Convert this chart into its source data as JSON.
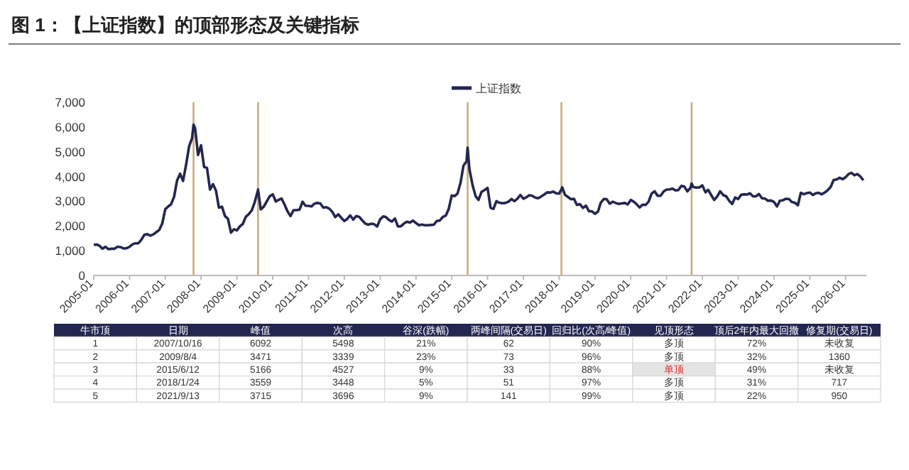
{
  "chart_data": {
    "type": "line",
    "title": "图 1：【上证指数】的顶部形态及关键指标",
    "legend": "top",
    "x": [
      "2005-01",
      "2005-02",
      "2005-03",
      "2005-04",
      "2005-05",
      "2005-06",
      "2005-07",
      "2005-08",
      "2005-09",
      "2005-10",
      "2005-11",
      "2005-12",
      "2006-01",
      "2006-02",
      "2006-03",
      "2006-04",
      "2006-05",
      "2006-06",
      "2006-07",
      "2006-08",
      "2006-09",
      "2006-10",
      "2006-11",
      "2006-12",
      "2007-01",
      "2007-02",
      "2007-03",
      "2007-04",
      "2007-05",
      "2007-06",
      "2007-07",
      "2007-08",
      "2007-09",
      "2007-10",
      "2007-10-16",
      "2007-11",
      "2007-12",
      "2008-01",
      "2008-02",
      "2008-03",
      "2008-04",
      "2008-05",
      "2008-06",
      "2008-07",
      "2008-08",
      "2008-09",
      "2008-10",
      "2008-11",
      "2008-12",
      "2009-01",
      "2009-02",
      "2009-03",
      "2009-04",
      "2009-05",
      "2009-06",
      "2009-07",
      "2009-08",
      "2009-08-04",
      "2009-09",
      "2009-10",
      "2009-11",
      "2009-12",
      "2010-01",
      "2010-02",
      "2010-03",
      "2010-04",
      "2010-05",
      "2010-06",
      "2010-07",
      "2010-08",
      "2010-09",
      "2010-10",
      "2010-11",
      "2010-12",
      "2011-01",
      "2011-02",
      "2011-03",
      "2011-04",
      "2011-05",
      "2011-06",
      "2011-07",
      "2011-08",
      "2011-09",
      "2011-10",
      "2011-11",
      "2011-12",
      "2012-01",
      "2012-02",
      "2012-03",
      "2012-04",
      "2012-05",
      "2012-06",
      "2012-07",
      "2012-08",
      "2012-09",
      "2012-10",
      "2012-11",
      "2012-12",
      "2013-01",
      "2013-02",
      "2013-03",
      "2013-04",
      "2013-05",
      "2013-06",
      "2013-07",
      "2013-08",
      "2013-09",
      "2013-10",
      "2013-11",
      "2013-12",
      "2014-01",
      "2014-02",
      "2014-03",
      "2014-04",
      "2014-05",
      "2014-06",
      "2014-07",
      "2014-08",
      "2014-09",
      "2014-10",
      "2014-11",
      "2014-12",
      "2015-01",
      "2015-02",
      "2015-03",
      "2015-04",
      "2015-05",
      "2015-06",
      "2015-06-12",
      "2015-07",
      "2015-08",
      "2015-09",
      "2015-10",
      "2015-11",
      "2015-12",
      "2016-01",
      "2016-02",
      "2016-03",
      "2016-04",
      "2016-05",
      "2016-06",
      "2016-07",
      "2016-08",
      "2016-09",
      "2016-10",
      "2016-11",
      "2016-12",
      "2017-01",
      "2017-02",
      "2017-03",
      "2017-04",
      "2017-05",
      "2017-06",
      "2017-07",
      "2017-08",
      "2017-09",
      "2017-10",
      "2017-11",
      "2017-12",
      "2018-01",
      "2018-01-24",
      "2018-02",
      "2018-03",
      "2018-04",
      "2018-05",
      "2018-06",
      "2018-07",
      "2018-08",
      "2018-09",
      "2018-10",
      "2018-11",
      "2018-12",
      "2019-01",
      "2019-02",
      "2019-03",
      "2019-04",
      "2019-05",
      "2019-06",
      "2019-07",
      "2019-08",
      "2019-09",
      "2019-10",
      "2019-11",
      "2019-12",
      "2020-01",
      "2020-02",
      "2020-03",
      "2020-04",
      "2020-05",
      "2020-06",
      "2020-07",
      "2020-08",
      "2020-09",
      "2020-10",
      "2020-11",
      "2020-12",
      "2021-01",
      "2021-02",
      "2021-03",
      "2021-04",
      "2021-05",
      "2021-06",
      "2021-07",
      "2021-08",
      "2021-09",
      "2021-09-13",
      "2021-10",
      "2021-11",
      "2021-12",
      "2022-01",
      "2022-02",
      "2022-03",
      "2022-04",
      "2022-05",
      "2022-06",
      "2022-07",
      "2022-08",
      "2022-09",
      "2022-10",
      "2022-11",
      "2022-12",
      "2023-01",
      "2023-02",
      "2023-03",
      "2023-04",
      "2023-05",
      "2023-06",
      "2023-07",
      "2023-08",
      "2023-09",
      "2023-10",
      "2023-11",
      "2023-12",
      "2024-01",
      "2024-02",
      "2024-03",
      "2024-04",
      "2024-05",
      "2024-06",
      "2024-07",
      "2024-08",
      "2024-09",
      "2024-10",
      "2024-11",
      "2024-12",
      "2025-01",
      "2025-02",
      "2025-03",
      "2025-04",
      "2025-05",
      "2025-06",
      "2025-07",
      "2025-08",
      "2025-09",
      "2025-10",
      "2025-11",
      "2025-12",
      "2026-01",
      "2026-02",
      "2026-03",
      "2026-04",
      "2026-05",
      "2026-06",
      "2026-07"
    ],
    "series": [
      {
        "name": "上证指数",
        "color": "#23264f",
        "values": [
          1240,
          1250,
          1200,
          1080,
          1160,
          1060,
          1080,
          1080,
          1160,
          1150,
          1090,
          1100,
          1160,
          1260,
          1300,
          1300,
          1440,
          1640,
          1670,
          1610,
          1660,
          1750,
          1840,
          2100,
          2680,
          2790,
          2880,
          3180,
          3840,
          4110,
          3820,
          4470,
          5220,
          5550,
          6092,
          5950,
          4870,
          5260,
          4380,
          4350,
          3470,
          3690,
          3430,
          2740,
          2780,
          2400,
          2290,
          1730,
          1870,
          1820,
          1990,
          2080,
          2370,
          2480,
          2630,
          2960,
          3410,
          3471,
          2670,
          2780,
          2990,
          3200,
          3280,
          2990,
          3050,
          3110,
          2870,
          2590,
          2400,
          2640,
          2640,
          2660,
          2980,
          2820,
          2810,
          2790,
          2900,
          2930,
          2910,
          2740,
          2760,
          2700,
          2570,
          2360,
          2470,
          2330,
          2200,
          2290,
          2430,
          2260,
          2400,
          2370,
          2230,
          2100,
          2050,
          2090,
          2070,
          1980,
          2270,
          2390,
          2360,
          2240,
          2180,
          2300,
          1980,
          1990,
          2100,
          2170,
          2140,
          2220,
          2120,
          2030,
          2060,
          2030,
          2030,
          2040,
          2050,
          2200,
          2220,
          2360,
          2420,
          2680,
          3230,
          3210,
          3310,
          3750,
          4440,
          4610,
          5166,
          4280,
          3660,
          3210,
          3050,
          3380,
          3450,
          3540,
          2740,
          2690,
          3000,
          2940,
          2920,
          2930,
          2980,
          3090,
          3000,
          3100,
          3250,
          3100,
          3160,
          3240,
          3220,
          3150,
          3120,
          3190,
          3270,
          3360,
          3350,
          3390,
          3320,
          3310,
          3480,
          3559,
          3260,
          3170,
          3080,
          3100,
          2850,
          2880,
          2730,
          2820,
          2600,
          2590,
          2490,
          2580,
          2940,
          3090,
          3080,
          2900,
          2980,
          2930,
          2890,
          2910,
          2930,
          2870,
          3050,
          2980,
          2880,
          2750,
          2860,
          2850,
          2980,
          3310,
          3400,
          3220,
          3220,
          3390,
          3470,
          3480,
          3510,
          3440,
          3450,
          3620,
          3590,
          3400,
          3540,
          3715,
          3570,
          3550,
          3560,
          3640,
          3360,
          3460,
          3250,
          3050,
          3190,
          3400,
          3250,
          3200,
          3020,
          2890,
          3150,
          3090,
          3260,
          3280,
          3270,
          3320,
          3200,
          3200,
          3290,
          3120,
          3110,
          3020,
          3030,
          2970,
          2790,
          3020,
          3040,
          3100,
          3090,
          2970,
          2940,
          2840,
          3340,
          3280,
          3330,
          3350,
          3250,
          3320,
          3340,
          3280,
          3350,
          3440,
          3570,
          3860,
          3880,
          3950,
          3890,
          3970,
          4100,
          4150,
          4050,
          4100,
          4000,
          3850
        ]
      }
    ],
    "xlim": [
      "2005-01",
      "2026-08"
    ],
    "xticks": [
      {
        "value": "2005-01",
        "label": "2005-01"
      },
      {
        "value": "2006-01",
        "label": "2006-01"
      },
      {
        "value": "2007-01",
        "label": "2007-01"
      },
      {
        "value": "2008-01",
        "label": "2008-01"
      },
      {
        "value": "2009-01",
        "label": "2009-01"
      },
      {
        "value": "2010-01",
        "label": "2010-01"
      },
      {
        "value": "2011-01",
        "label": "2011-01"
      },
      {
        "value": "2012-01",
        "label": "2012-01"
      },
      {
        "value": "2013-01",
        "label": "2013-01"
      },
      {
        "value": "2014-01",
        "label": "2014-01"
      },
      {
        "value": "2015-01",
        "label": "2015-01"
      },
      {
        "value": "2016-01",
        "label": "2016-01"
      },
      {
        "value": "2017-01",
        "label": "2017-01"
      },
      {
        "value": "2018-01",
        "label": "2018-01"
      },
      {
        "value": "2019-01",
        "label": "2019-01"
      },
      {
        "value": "2020-01",
        "label": "2020-01"
      },
      {
        "value": "2021-01",
        "label": "2021-01"
      },
      {
        "value": "2022-01",
        "label": "2022-01"
      },
      {
        "value": "2023-01",
        "label": "2023-01"
      },
      {
        "value": "2024-01",
        "label": "2024-01"
      },
      {
        "value": "2025-01",
        "label": "2025-01"
      },
      {
        "value": "2026-01",
        "label": "2026-01"
      }
    ],
    "ylim": [
      0,
      7000
    ],
    "yticks": [
      {
        "value": 0,
        "label": "0"
      },
      {
        "value": 1000,
        "label": "1,000"
      },
      {
        "value": 2000,
        "label": "2,000"
      },
      {
        "value": 3000,
        "label": "3,000"
      },
      {
        "value": 4000,
        "label": "4,000"
      },
      {
        "value": 5000,
        "label": "5,000"
      },
      {
        "value": 6000,
        "label": "6,000"
      },
      {
        "value": 7000,
        "label": "7,000"
      }
    ],
    "ref_lines": [
      {
        "axis": "x",
        "value": "2007-10-16",
        "label": null,
        "color": "#c9ad7a"
      },
      {
        "axis": "x",
        "value": "2009-08-04",
        "label": null,
        "color": "#c9ad7a"
      },
      {
        "axis": "x",
        "value": "2015-06-12",
        "label": null,
        "color": "#c9ad7a"
      },
      {
        "axis": "x",
        "value": "2018-01-24",
        "label": null,
        "color": "#c9ad7a"
      },
      {
        "axis": "x",
        "value": "2021-09-13",
        "label": null,
        "color": "#c9ad7a"
      }
    ],
    "annotations": [
      "牛市顶",
      "日期",
      "峰值",
      "次高",
      "谷深(跌幅)",
      "两峰间隔(交易日)",
      "回归比(次高/峰值)",
      "见顶形态",
      "顶后2年内最大回撤",
      "修复期(交易日)",
      "1",
      "2007/10/16",
      "6092",
      "5498",
      "21%",
      "62",
      "90%",
      "多顶",
      "72%",
      "未收复",
      "2",
      "2009/8/4",
      "3471",
      "3339",
      "23%",
      "73",
      "96%",
      "多顶",
      "32%",
      "1360",
      "3",
      "2015/6/12",
      "5166",
      "4527",
      "9%",
      "33",
      "88%",
      "单顶",
      "49%",
      "未收复",
      "4",
      "2018/1/24",
      "3559",
      "3448",
      "5%",
      "51",
      "97%",
      "多顶",
      "31%",
      "717",
      "5",
      "2021/9/13",
      "3715",
      "3696",
      "9%",
      "141",
      "99%",
      "多顶",
      "22%",
      "950"
    ]
  }
}
